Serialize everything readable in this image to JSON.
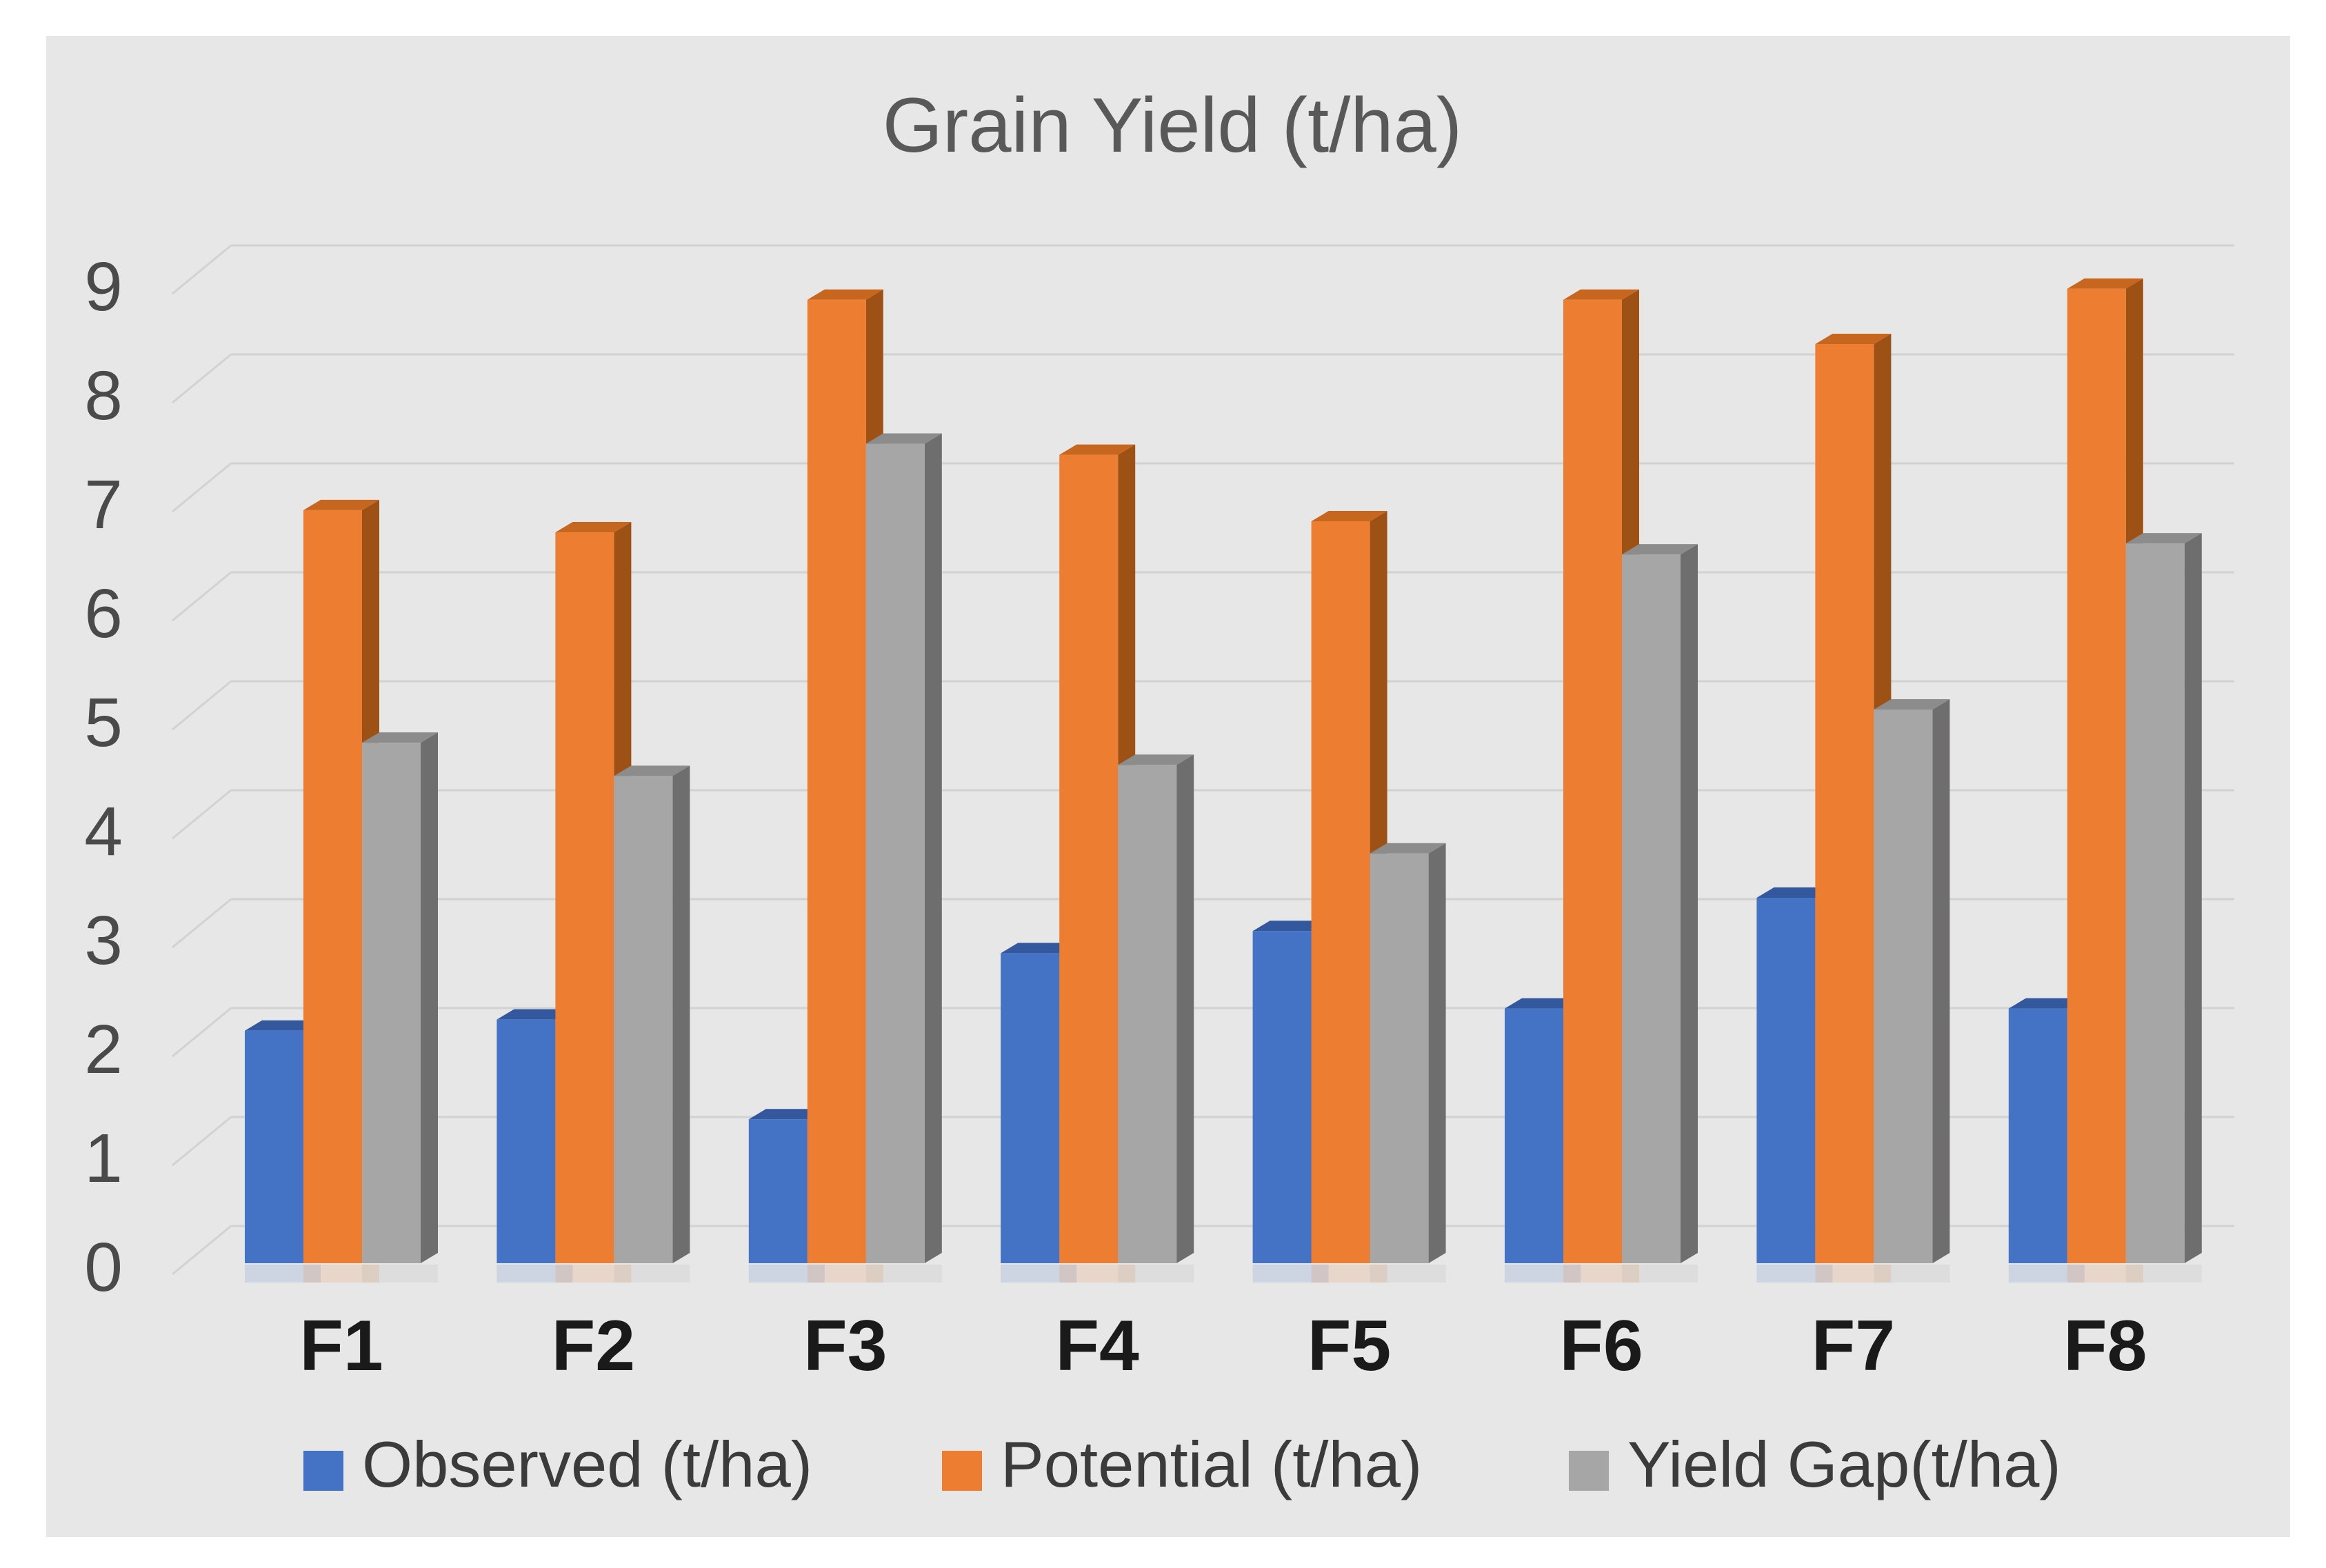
{
  "title": "Grain Yield (t/ha)",
  "palette": {
    "page_background": "#FFFFFF",
    "panel_background": "#E8E7E7",
    "gridline": "#D2D2D2",
    "title_text": "#595959",
    "tick_text": "#4A4A4A",
    "category_text": "#1A1A1A",
    "legend_text": "#3B3B3B",
    "observed_blue": "#4472C4",
    "potential_orange": "#ED7D31",
    "yieldgap_gray": "#A6A6A6"
  },
  "chart_data": {
    "type": "bar",
    "variant": "3d-clustered-column",
    "title": "Grain Yield (t/ha)",
    "categories": [
      "F1",
      "F2",
      "F3",
      "F4",
      "F5",
      "F6",
      "F7",
      "F8"
    ],
    "series": [
      {
        "name": "Observed (t/ha)",
        "color": "#4472C4",
        "color_top": "#34589E",
        "color_side": "#2A4780",
        "values": [
          2.1,
          2.2,
          1.3,
          2.8,
          3.0,
          2.3,
          3.3,
          2.3
        ]
      },
      {
        "name": "Potential (t/ha)",
        "color": "#ED7D31",
        "color_top": "#C7661F",
        "color_side": "#9E5115",
        "values": [
          6.8,
          6.6,
          8.7,
          7.3,
          6.7,
          8.7,
          8.3,
          8.8
        ]
      },
      {
        "name": "Yield Gap(t/ha)",
        "color": "#A6A6A6",
        "color_top": "#8C8C8C",
        "color_side": "#6E6E6E",
        "values": [
          4.7,
          4.4,
          7.4,
          4.5,
          3.7,
          6.4,
          5.0,
          6.5
        ]
      }
    ],
    "xlabel": "",
    "ylabel": "",
    "ylim": [
      0,
      9
    ],
    "yticks": [
      0,
      1,
      2,
      3,
      4,
      5,
      6,
      7,
      8,
      9
    ],
    "grid": true,
    "legend_position": "bottom",
    "legend": [
      "Observed (t/ha)",
      "Potential (t/ha)",
      "Yield Gap(t/ha)"
    ]
  }
}
